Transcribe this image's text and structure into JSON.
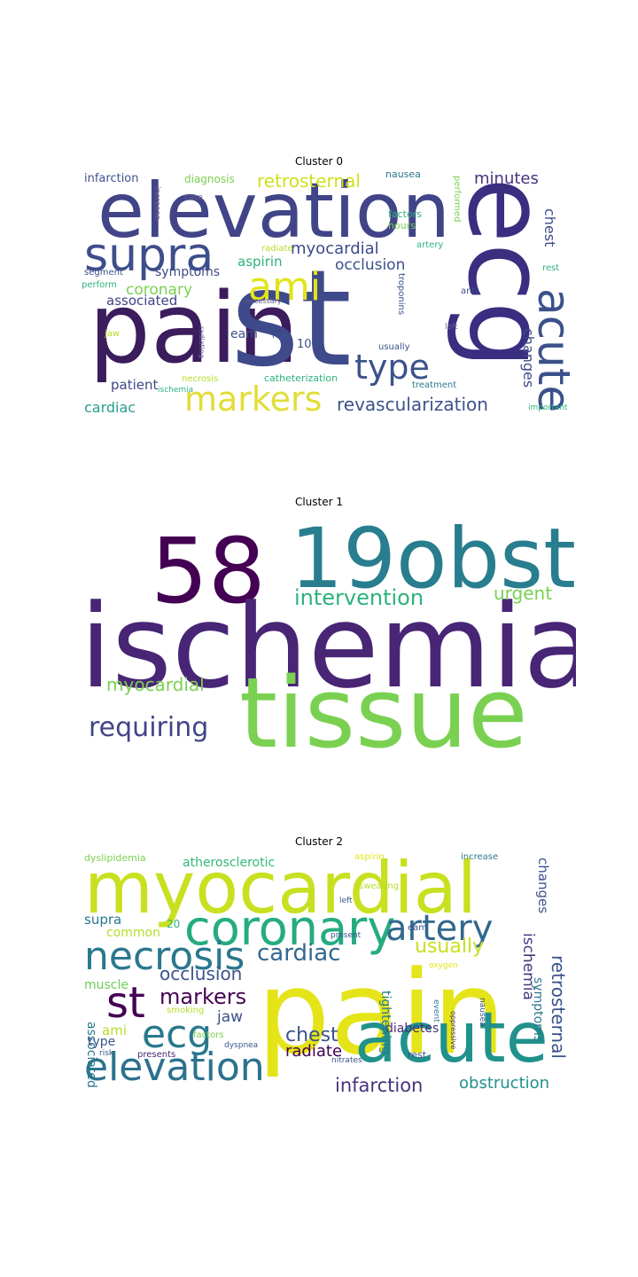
{
  "clusters": [
    {
      "title": "Cluster 0",
      "words": [
        {
          "text": "elevation",
          "color": "#414487"
        },
        {
          "text": "pain",
          "color": "#3b1c5c"
        },
        {
          "text": "st",
          "color": "#3e4a89"
        },
        {
          "text": "ecg",
          "color": "#3a2e80"
        },
        {
          "text": "supra",
          "color": "#3e4e8a"
        },
        {
          "text": "ami",
          "color": "#e2e418"
        },
        {
          "text": "acute",
          "color": "#3b518b"
        },
        {
          "text": "type",
          "color": "#3b528b"
        },
        {
          "text": "markers",
          "color": "#e1dd37"
        },
        {
          "text": "retrosternal",
          "color": "#d0e11c"
        },
        {
          "text": "revascularization",
          "color": "#3b528b"
        },
        {
          "text": "myocardial",
          "color": "#3e4a89"
        },
        {
          "text": "minutes",
          "color": "#46337e"
        },
        {
          "text": "coronary",
          "color": "#7ad151"
        },
        {
          "text": "occlusion",
          "color": "#3b518b"
        },
        {
          "text": "chest",
          "color": "#3e4c8a"
        },
        {
          "text": "associated",
          "color": "#414487"
        },
        {
          "text": "aspirin",
          "color": "#2db27d"
        },
        {
          "text": "symptoms",
          "color": "#3f4889"
        },
        {
          "text": "patient",
          "color": "#3f4788"
        },
        {
          "text": "cardiac",
          "color": "#2a9d8f"
        },
        {
          "text": "changes",
          "color": "#3e4a89"
        },
        {
          "text": "eam",
          "color": "#3b528b"
        },
        {
          "text": "10",
          "color": "#3b528b"
        },
        {
          "text": "infarction",
          "color": "#3b528b"
        },
        {
          "text": "diagnosis",
          "color": "#7ad151"
        },
        {
          "text": "nausea",
          "color": "#2a788e"
        },
        {
          "text": "factors",
          "color": "#2db27d"
        },
        {
          "text": "hours",
          "color": "#7ad151"
        },
        {
          "text": "performed",
          "color": "#7ad151"
        },
        {
          "text": "increase",
          "color": "#6b5b95"
        },
        {
          "text": "case",
          "color": "#6b5b95"
        },
        {
          "text": "radiate",
          "color": "#b5de2b"
        },
        {
          "text": "artery",
          "color": "#2db27d"
        },
        {
          "text": "segment",
          "color": "#3b528b"
        },
        {
          "text": "perform",
          "color": "#2db27d"
        },
        {
          "text": "rest",
          "color": "#2db27d"
        },
        {
          "text": "troponins",
          "color": "#3b528b"
        },
        {
          "text": "necessary",
          "color": "#6b5b95"
        },
        {
          "text": "anti",
          "color": "#3b528b"
        },
        {
          "text": "risk",
          "color": "#3b528b"
        },
        {
          "text": "jaw",
          "color": "#b5de2b"
        },
        {
          "text": "radiating",
          "color": "#6b5b95"
        },
        {
          "text": "usually",
          "color": "#3b528b"
        },
        {
          "text": "left",
          "color": "#6b5b95"
        },
        {
          "text": "necrosis",
          "color": "#b5de2b"
        },
        {
          "text": "ischemia",
          "color": "#2db27d"
        },
        {
          "text": "catheterization",
          "color": "#2db27d"
        },
        {
          "text": "treatment",
          "color": "#2a788e"
        },
        {
          "text": "important",
          "color": "#2db27d"
        }
      ]
    },
    {
      "title": "Cluster 1",
      "words": [
        {
          "text": "58",
          "color": "#440154"
        },
        {
          "text": "19obst",
          "color": "#287d8e"
        },
        {
          "text": "ischemia",
          "color": "#482575"
        },
        {
          "text": "tissue",
          "color": "#7ad151"
        },
        {
          "text": "intervention",
          "color": "#2db27d"
        },
        {
          "text": "urgent",
          "color": "#7ad151"
        },
        {
          "text": "myocardial",
          "color": "#7ad151"
        },
        {
          "text": "requiring",
          "color": "#414487"
        }
      ]
    },
    {
      "title": "Cluster 2",
      "words": [
        {
          "text": "myocardial",
          "color": "#c8e020"
        },
        {
          "text": "pain",
          "color": "#e5e419"
        },
        {
          "text": "coronary",
          "color": "#25ab82"
        },
        {
          "text": "artery",
          "color": "#31688e"
        },
        {
          "text": "necrosis",
          "color": "#2a788e"
        },
        {
          "text": "cardiac",
          "color": "#31688e"
        },
        {
          "text": "usually",
          "color": "#c8e020"
        },
        {
          "text": "st",
          "color": "#440154"
        },
        {
          "text": "markers",
          "color": "#440154"
        },
        {
          "text": "occlusion",
          "color": "#3b528b"
        },
        {
          "text": "ecg",
          "color": "#2a788e"
        },
        {
          "text": "acute",
          "color": "#21918c"
        },
        {
          "text": "chest",
          "color": "#3b528b"
        },
        {
          "text": "elevation",
          "color": "#2c728e"
        },
        {
          "text": "radiate",
          "color": "#440154"
        },
        {
          "text": "infarction",
          "color": "#46337e"
        },
        {
          "text": "obstruction",
          "color": "#21918c"
        },
        {
          "text": "retrosternal",
          "color": "#3b528b"
        },
        {
          "text": "changes",
          "color": "#3b528b"
        },
        {
          "text": "ischemia",
          "color": "#46337e"
        },
        {
          "text": "symptoms",
          "color": "#2a788e"
        },
        {
          "text": "diabetes",
          "color": "#472d7b"
        },
        {
          "text": "tightening",
          "color": "#2a788e"
        },
        {
          "text": "atherosclerotic",
          "color": "#35b779"
        },
        {
          "text": "supra",
          "color": "#2a788e"
        },
        {
          "text": "common",
          "color": "#b5de2b"
        },
        {
          "text": "20",
          "color": "#2db27d"
        },
        {
          "text": "muscle",
          "color": "#6ece58"
        },
        {
          "text": "associated",
          "color": "#2a788e"
        },
        {
          "text": "jaw",
          "color": "#3b528b"
        },
        {
          "text": "ami",
          "color": "#b5de2b"
        },
        {
          "text": "type",
          "color": "#3b528b"
        },
        {
          "text": "dyslipidemia",
          "color": "#7ad151"
        },
        {
          "text": "aspirin",
          "color": "#e2e418"
        },
        {
          "text": "increase",
          "color": "#2a788e"
        },
        {
          "text": "sweating",
          "color": "#b5de2b"
        },
        {
          "text": "left",
          "color": "#3b528b"
        },
        {
          "text": "present",
          "color": "#3b528b"
        },
        {
          "text": "eam",
          "color": "#3b528b"
        },
        {
          "text": "oxygen",
          "color": "#e2e418"
        },
        {
          "text": "event",
          "color": "#2a788e"
        },
        {
          "text": "oppressive",
          "color": "#482575"
        },
        {
          "text": "nausea",
          "color": "#3b528b"
        },
        {
          "text": "smoking",
          "color": "#b5de2b"
        },
        {
          "text": "risk",
          "color": "#3b528b"
        },
        {
          "text": "factors",
          "color": "#7ad151"
        },
        {
          "text": "dyspnea",
          "color": "#3b528b"
        },
        {
          "text": "presents",
          "color": "#482575"
        },
        {
          "text": "rest",
          "color": "#3b528b"
        },
        {
          "text": "nitrates",
          "color": "#3b528b"
        }
      ]
    }
  ]
}
